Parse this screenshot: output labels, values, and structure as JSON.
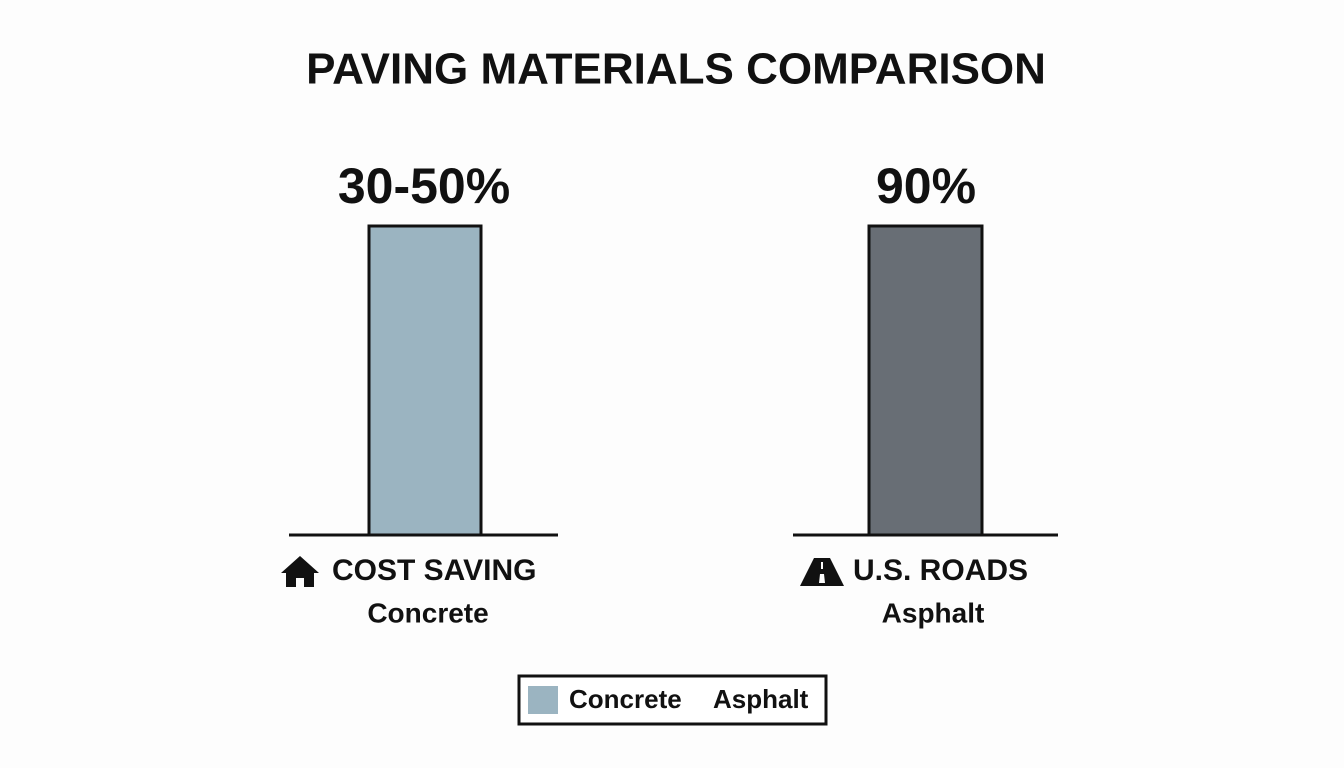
{
  "title": "PAVING MATERIALS COMPARISON",
  "panels": [
    {
      "value_label": "30-50%",
      "label": "COST SAVING",
      "material": "Concrete",
      "color": "#9bb4c1"
    },
    {
      "value_label": "90%",
      "label": "U.S. ROADS",
      "material": "Asphalt",
      "color": "#686e75"
    }
  ],
  "legend": [
    {
      "name": "Concrete",
      "color": "#9bb4c1"
    },
    {
      "name": "Asphalt"
    }
  ]
}
